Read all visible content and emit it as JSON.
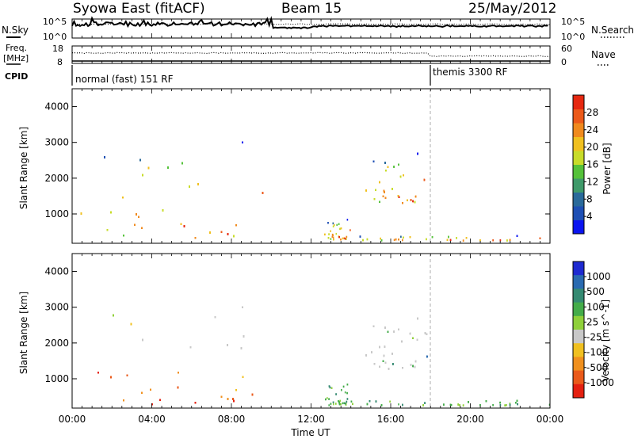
{
  "header": {
    "station": "Syowa East (fitACF)",
    "beam": "Beam 15",
    "date": "25/May/2012"
  },
  "top_panels": {
    "nsky_label": "N.Sky",
    "nsearch_label": "N.Search",
    "nsky_ticks": [
      "10^5",
      "10^0"
    ],
    "nsearch_ticks": [
      "10^5",
      "10^0"
    ],
    "freq_label": "Freq.",
    "freq_unit": "[MHz]",
    "freq_ticks": [
      "18",
      "8"
    ],
    "nave_label": "Nave",
    "nave_ticks": [
      "60",
      "0"
    ],
    "cpid_label": "CPID",
    "cpid_segments": [
      {
        "label": "normal (fast) 151 RF",
        "start_hour": 0.0
      },
      {
        "label": "themis 3300 RF",
        "start_hour": 18.0
      }
    ]
  },
  "chart_data": [
    {
      "type": "heatmap",
      "name": "power-panel",
      "ylabel": "Slant Range [km]",
      "yticks": [
        "1000",
        "2000",
        "3000",
        "4000"
      ],
      "ylim": [
        180,
        4500
      ],
      "xlim": [
        0,
        24
      ],
      "colorbar": {
        "label": "Power [dB]",
        "ticks": [
          "4",
          "8",
          "12",
          "16",
          "20",
          "24",
          "28"
        ],
        "colors": [
          "#0a14f0",
          "#1e4fb4",
          "#2a6a9a",
          "#3f9a6a",
          "#55c23a",
          "#c8dc2a",
          "#f0c020",
          "#f08a1e",
          "#ec5a1a",
          "#e62810"
        ]
      },
      "regions": [
        {
          "x0": 0.0,
          "x1": 10.0,
          "y0": 300,
          "y1": 3200
        },
        {
          "x0": 12.6,
          "x1": 14.0,
          "y0": 300,
          "y1": 900
        },
        {
          "x0": 14.6,
          "x1": 17.8,
          "y0": 1300,
          "y1": 2800
        },
        {
          "x0": 12.6,
          "x1": 24.0,
          "y0": 280,
          "y1": 420
        }
      ]
    },
    {
      "type": "heatmap",
      "name": "velocity-panel",
      "ylabel": "Slant Range [km]",
      "yticks": [
        "1000",
        "2000",
        "3000",
        "4000"
      ],
      "ylim": [
        180,
        4500
      ],
      "xlim": [
        0,
        24
      ],
      "xticks": [
        "00:00",
        "04:00",
        "08:00",
        "12:00",
        "16:00",
        "20:00",
        "00:00"
      ],
      "xlabel": "Time UT",
      "colorbar": {
        "label": "Velocity [m s^-1]",
        "ticks": [
          "1000",
          "500",
          "100",
          "25",
          "-25",
          "-100",
          "-500",
          "-1000"
        ],
        "colors": [
          "#1e2ad0",
          "#2a6ab0",
          "#358a72",
          "#44ac4a",
          "#8fd03a",
          "#c8c8c8",
          "#f0c020",
          "#f0901e",
          "#ea5a1a",
          "#e42010"
        ]
      },
      "regions": [
        {
          "x0": 0.0,
          "x1": 10.0,
          "y0": 300,
          "y1": 3200
        },
        {
          "x0": 12.6,
          "x1": 14.0,
          "y0": 300,
          "y1": 900
        },
        {
          "x0": 14.6,
          "x1": 17.8,
          "y0": 1300,
          "y1": 2800
        },
        {
          "x0": 12.6,
          "x1": 24.0,
          "y0": 280,
          "y1": 420
        }
      ]
    }
  ]
}
